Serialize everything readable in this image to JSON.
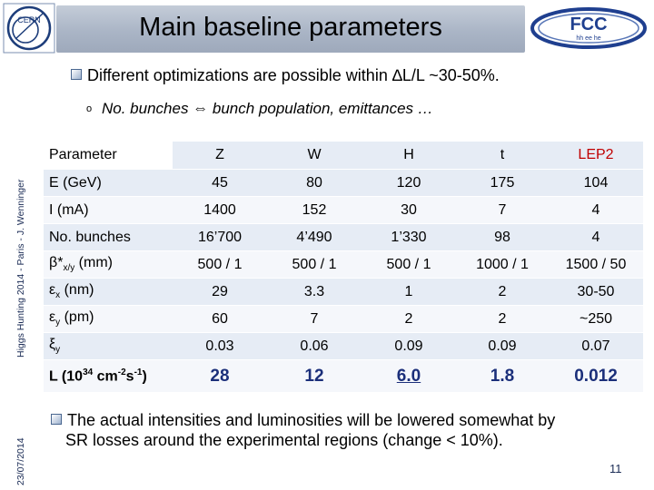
{
  "header": {
    "title": "Main baseline parameters",
    "cern_logo_text": "CERN",
    "fcc_logo_text": "FCC",
    "fcc_logo_subtext": "hh ee he"
  },
  "sidebar": {
    "event": "Higgs Hunting 2014 - Paris - J. Wenninger",
    "date": "23/07/2014"
  },
  "bullets": {
    "first": "Different optimizations are possible within ∆L/L ~30-50%.",
    "sub_marker": "o",
    "sub": "No. bunches ⇔ bunch population, emittances …",
    "last_line1": "The actual intensities and luminosities will be lowered somewhat by",
    "last_line2": "SR losses  around the experimental regions (change < 10%)."
  },
  "table": {
    "columns": [
      "Parameter",
      "Z",
      "W",
      "H",
      "t",
      "LEP2"
    ],
    "rows": [
      {
        "label": "E (GeV)",
        "values": [
          "45",
          "80",
          "120",
          "175",
          "104"
        ]
      },
      {
        "label": "I (mA)",
        "values": [
          "1400",
          "152",
          "30",
          "7",
          "4"
        ]
      },
      {
        "label": "No. bunches",
        "values": [
          "16’700",
          "4’490",
          "1’330",
          "98",
          "4"
        ]
      },
      {
        "label_main": "β*",
        "label_sub": "x/y",
        "label_tail": " (mm)",
        "values": [
          "500 / 1",
          "500 / 1",
          "500 / 1",
          "1000 / 1",
          "1500 / 50"
        ]
      },
      {
        "label_main": "ε",
        "label_sub": "x",
        "label_tail": " (nm)",
        "values": [
          "29",
          "3.3",
          "1",
          "2",
          "30-50"
        ]
      },
      {
        "label_main": "ε",
        "label_sub": "y",
        "label_tail": " (pm)",
        "values": [
          "60",
          "7",
          "2",
          "2",
          "~250"
        ]
      },
      {
        "label_main": "ξ",
        "label_sub": "y",
        "label_tail": "",
        "values": [
          "0.03",
          "0.06",
          "0.09",
          "0.09",
          "0.07"
        ]
      }
    ],
    "lumi": {
      "label_a": "L (10",
      "label_exp1": "34",
      "label_b": " cm",
      "label_exp2": "-2",
      "label_c": "s",
      "label_exp3": "-1",
      "label_d": ")",
      "values": [
        "28",
        "12",
        "6.0",
        "1.8",
        "0.012"
      ]
    }
  },
  "page_number": "11"
}
